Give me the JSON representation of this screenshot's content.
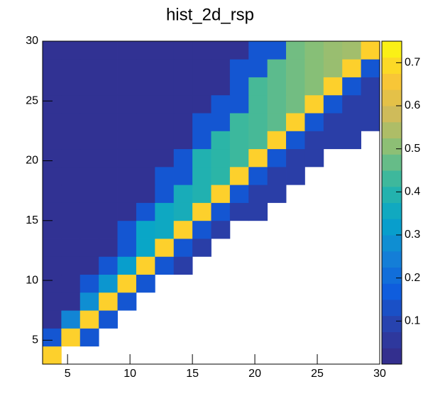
{
  "chart_data": {
    "type": "heatmap",
    "title": "hist_2d_rsp",
    "xbins": [
      3,
      4.5,
      6,
      7.5,
      9,
      10.5,
      12,
      13.5,
      15,
      16.5,
      18,
      19.5,
      21,
      22.5,
      24,
      25.5,
      27,
      28.5,
      30
    ],
    "ybins": [
      3,
      4.5,
      6,
      7.5,
      9,
      10.5,
      12,
      13.5,
      15,
      16.5,
      18,
      19.5,
      21,
      22.5,
      24,
      25.5,
      27,
      28.5,
      30
    ],
    "z": [
      [
        0.68,
        null,
        null,
        null,
        null,
        null,
        null,
        null,
        null,
        null,
        null,
        null,
        null,
        null,
        null,
        null,
        null,
        null
      ],
      [
        0.15,
        0.68,
        0.15,
        null,
        null,
        null,
        null,
        null,
        null,
        null,
        null,
        null,
        null,
        null,
        null,
        null,
        null,
        null
      ],
      [
        0.03,
        0.26,
        0.68,
        0.15,
        null,
        null,
        null,
        null,
        null,
        null,
        null,
        null,
        null,
        null,
        null,
        null,
        null,
        null
      ],
      [
        0.03,
        0.03,
        0.28,
        0.68,
        0.15,
        null,
        null,
        null,
        null,
        null,
        null,
        null,
        null,
        null,
        null,
        null,
        null,
        null
      ],
      [
        0.03,
        0.03,
        0.15,
        0.3,
        0.68,
        0.15,
        null,
        null,
        null,
        null,
        null,
        null,
        null,
        null,
        null,
        null,
        null,
        null
      ],
      [
        0.03,
        0.03,
        0.03,
        0.15,
        0.32,
        0.68,
        0.15,
        0.08,
        null,
        null,
        null,
        null,
        null,
        null,
        null,
        null,
        null,
        null
      ],
      [
        0.03,
        0.03,
        0.03,
        0.03,
        0.15,
        0.34,
        0.68,
        0.15,
        0.08,
        null,
        null,
        null,
        null,
        null,
        null,
        null,
        null,
        null
      ],
      [
        0.03,
        0.03,
        0.03,
        0.03,
        0.15,
        0.34,
        0.35,
        0.68,
        0.15,
        0.08,
        null,
        null,
        null,
        null,
        null,
        null,
        null,
        null
      ],
      [
        0.03,
        0.03,
        0.03,
        0.03,
        0.03,
        0.15,
        0.35,
        0.37,
        0.68,
        0.15,
        0.08,
        0.08,
        null,
        null,
        null,
        null,
        null,
        null
      ],
      [
        0.03,
        0.03,
        0.03,
        0.03,
        0.03,
        0.03,
        0.15,
        0.37,
        0.39,
        0.68,
        0.15,
        0.08,
        0.08,
        null,
        null,
        null,
        null,
        null
      ],
      [
        0.03,
        0.03,
        0.03,
        0.03,
        0.03,
        0.03,
        0.15,
        0.15,
        0.39,
        0.41,
        0.68,
        0.15,
        0.08,
        0.08,
        null,
        null,
        null,
        null
      ],
      [
        0.03,
        0.03,
        0.03,
        0.03,
        0.03,
        0.03,
        0.03,
        0.15,
        0.39,
        0.41,
        0.43,
        0.68,
        0.15,
        0.08,
        0.08,
        null,
        null,
        null
      ],
      [
        0.03,
        0.03,
        0.03,
        0.03,
        0.03,
        0.03,
        0.03,
        0.03,
        0.15,
        0.41,
        0.43,
        0.44,
        0.68,
        0.15,
        0.08,
        0.08,
        0.08,
        null
      ],
      [
        0.03,
        0.03,
        0.03,
        0.03,
        0.03,
        0.03,
        0.03,
        0.03,
        0.15,
        0.15,
        0.43,
        0.44,
        0.46,
        0.68,
        0.15,
        0.08,
        0.08,
        0.08
      ],
      [
        0.03,
        0.03,
        0.03,
        0.03,
        0.03,
        0.03,
        0.03,
        0.03,
        0.03,
        0.15,
        0.15,
        0.44,
        0.46,
        0.48,
        0.68,
        0.15,
        0.08,
        0.08
      ],
      [
        0.03,
        0.03,
        0.03,
        0.03,
        0.03,
        0.03,
        0.03,
        0.03,
        0.03,
        0.03,
        0.15,
        0.44,
        0.46,
        0.48,
        0.5,
        0.68,
        0.15,
        0.08
      ],
      [
        0.03,
        0.03,
        0.03,
        0.03,
        0.03,
        0.03,
        0.03,
        0.03,
        0.03,
        0.03,
        0.15,
        0.15,
        0.46,
        0.48,
        0.5,
        0.52,
        0.68,
        0.15
      ],
      [
        0.03,
        0.03,
        0.03,
        0.03,
        0.03,
        0.03,
        0.03,
        0.03,
        0.03,
        0.03,
        0.03,
        0.15,
        0.15,
        0.48,
        0.5,
        0.52,
        0.53,
        0.68
      ]
    ],
    "xlim": [
      3,
      30
    ],
    "xticks": [
      5,
      10,
      15,
      20,
      25,
      30
    ],
    "ylim": [
      3,
      30
    ],
    "yticks": [
      5,
      10,
      15,
      20,
      25,
      30
    ],
    "zlim": [
      0,
      0.75
    ],
    "zticks": [
      0.1,
      0.2,
      0.3,
      0.4,
      0.5,
      0.6,
      0.7
    ],
    "palette": [
      "#352a87",
      "#2a3fa8",
      "#0f5cdd",
      "#1481d6",
      "#06a4ca",
      "#2eb7a4",
      "#87bf77",
      "#d1bb59",
      "#fec832",
      "#f9fb0e"
    ]
  }
}
